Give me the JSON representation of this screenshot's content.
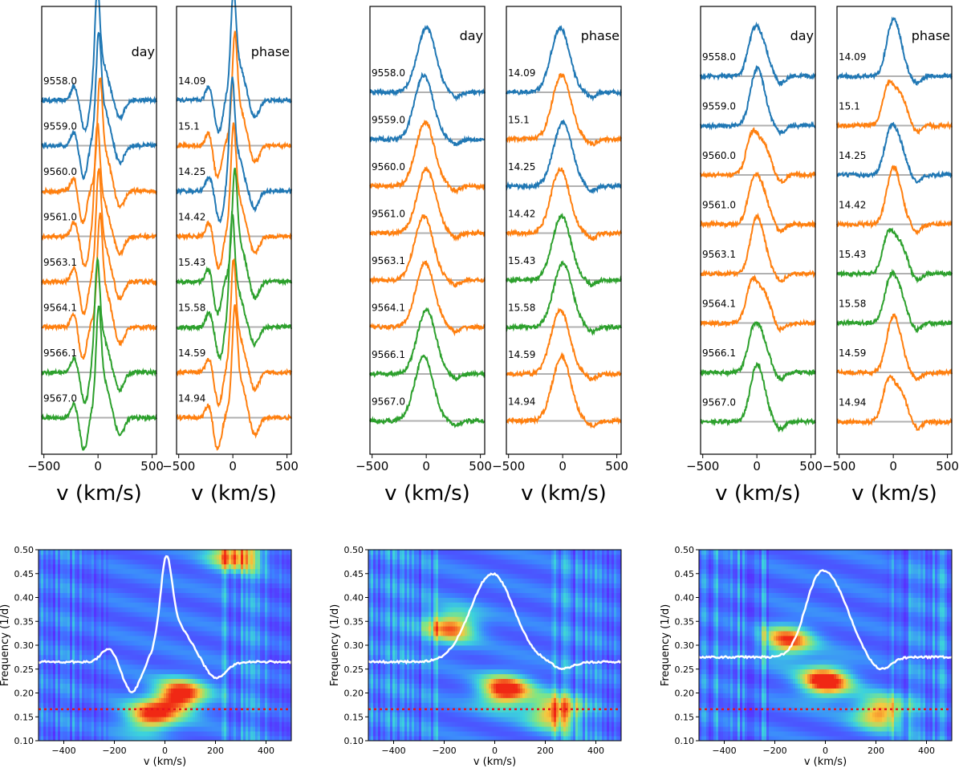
{
  "chart_data": {
    "type": "line",
    "description_axis": "Line profile spectra stacked by day and phase (top) and 2D periodograms (bottom) for three emission lines",
    "colors": {
      "blue": "#1f77b4",
      "orange": "#ff7f0e",
      "green": "#2ca02c",
      "baseline": "#b0b0b0",
      "trace": "#ffffff",
      "period": "#e8141c"
    },
    "panel_titles": {
      "day": "day",
      "phase": "phase"
    },
    "spectra_xlabel": "v (km/s)",
    "spectra_xticks": [
      "−500",
      "0",
      "500"
    ],
    "spectra_xlim": [
      -520,
      540
    ],
    "day_labels": [
      "9558.0",
      "9559.0",
      "9560.0",
      "9561.0",
      "9563.1",
      "9564.1",
      "9566.1",
      "9567.0"
    ],
    "phase_labels": [
      "14.09",
      "15.1",
      "14.25",
      "14.42",
      "15.43",
      "15.58",
      "14.59",
      "14.94"
    ],
    "day_colors": [
      "blue",
      "blue",
      "orange",
      "orange",
      "orange",
      "orange",
      "green",
      "green"
    ],
    "phase_colors": [
      "blue",
      "orange",
      "blue",
      "orange",
      "green",
      "green",
      "orange",
      "orange"
    ],
    "periodogram": {
      "xlabel": "v (km/s)",
      "ylabel": "Frequency (1/d)",
      "xlim": [
        -500,
        500
      ],
      "ylim": [
        0.1,
        0.5
      ],
      "xticks": [
        "−400",
        "−200",
        "0",
        "200",
        "400"
      ],
      "yticks": [
        "0.10",
        "0.15",
        "0.20",
        "0.25",
        "0.30",
        "0.35",
        "0.40",
        "0.45",
        "0.50"
      ],
      "period_frequency": 0.166
    },
    "lines": [
      {
        "name": "line-1",
        "profile_type": "narrow-peak-with-absorption",
        "mean_profile_peak_frequency": 0.45,
        "mean_profile_base_frequency": 0.265,
        "power_peaks": [
          {
            "v": 60,
            "f": 0.195
          },
          {
            "v": -60,
            "f": 0.15
          },
          {
            "v": 280,
            "f": 0.49
          }
        ]
      },
      {
        "name": "line-2",
        "profile_type": "broad-single-peak",
        "mean_profile_peak_frequency": 0.45,
        "mean_profile_base_frequency": 0.265,
        "power_peaks": [
          {
            "v": 40,
            "f": 0.205
          },
          {
            "v": 240,
            "f": 0.16
          },
          {
            "v": -170,
            "f": 0.34
          }
        ]
      },
      {
        "name": "line-3",
        "profile_type": "broad-flat-top",
        "mean_profile_peak_frequency": 0.45,
        "mean_profile_base_frequency": 0.275,
        "power_peaks": [
          {
            "v": 0,
            "f": 0.225
          },
          {
            "v": 220,
            "f": 0.16
          },
          {
            "v": -150,
            "f": 0.31
          }
        ]
      }
    ]
  }
}
